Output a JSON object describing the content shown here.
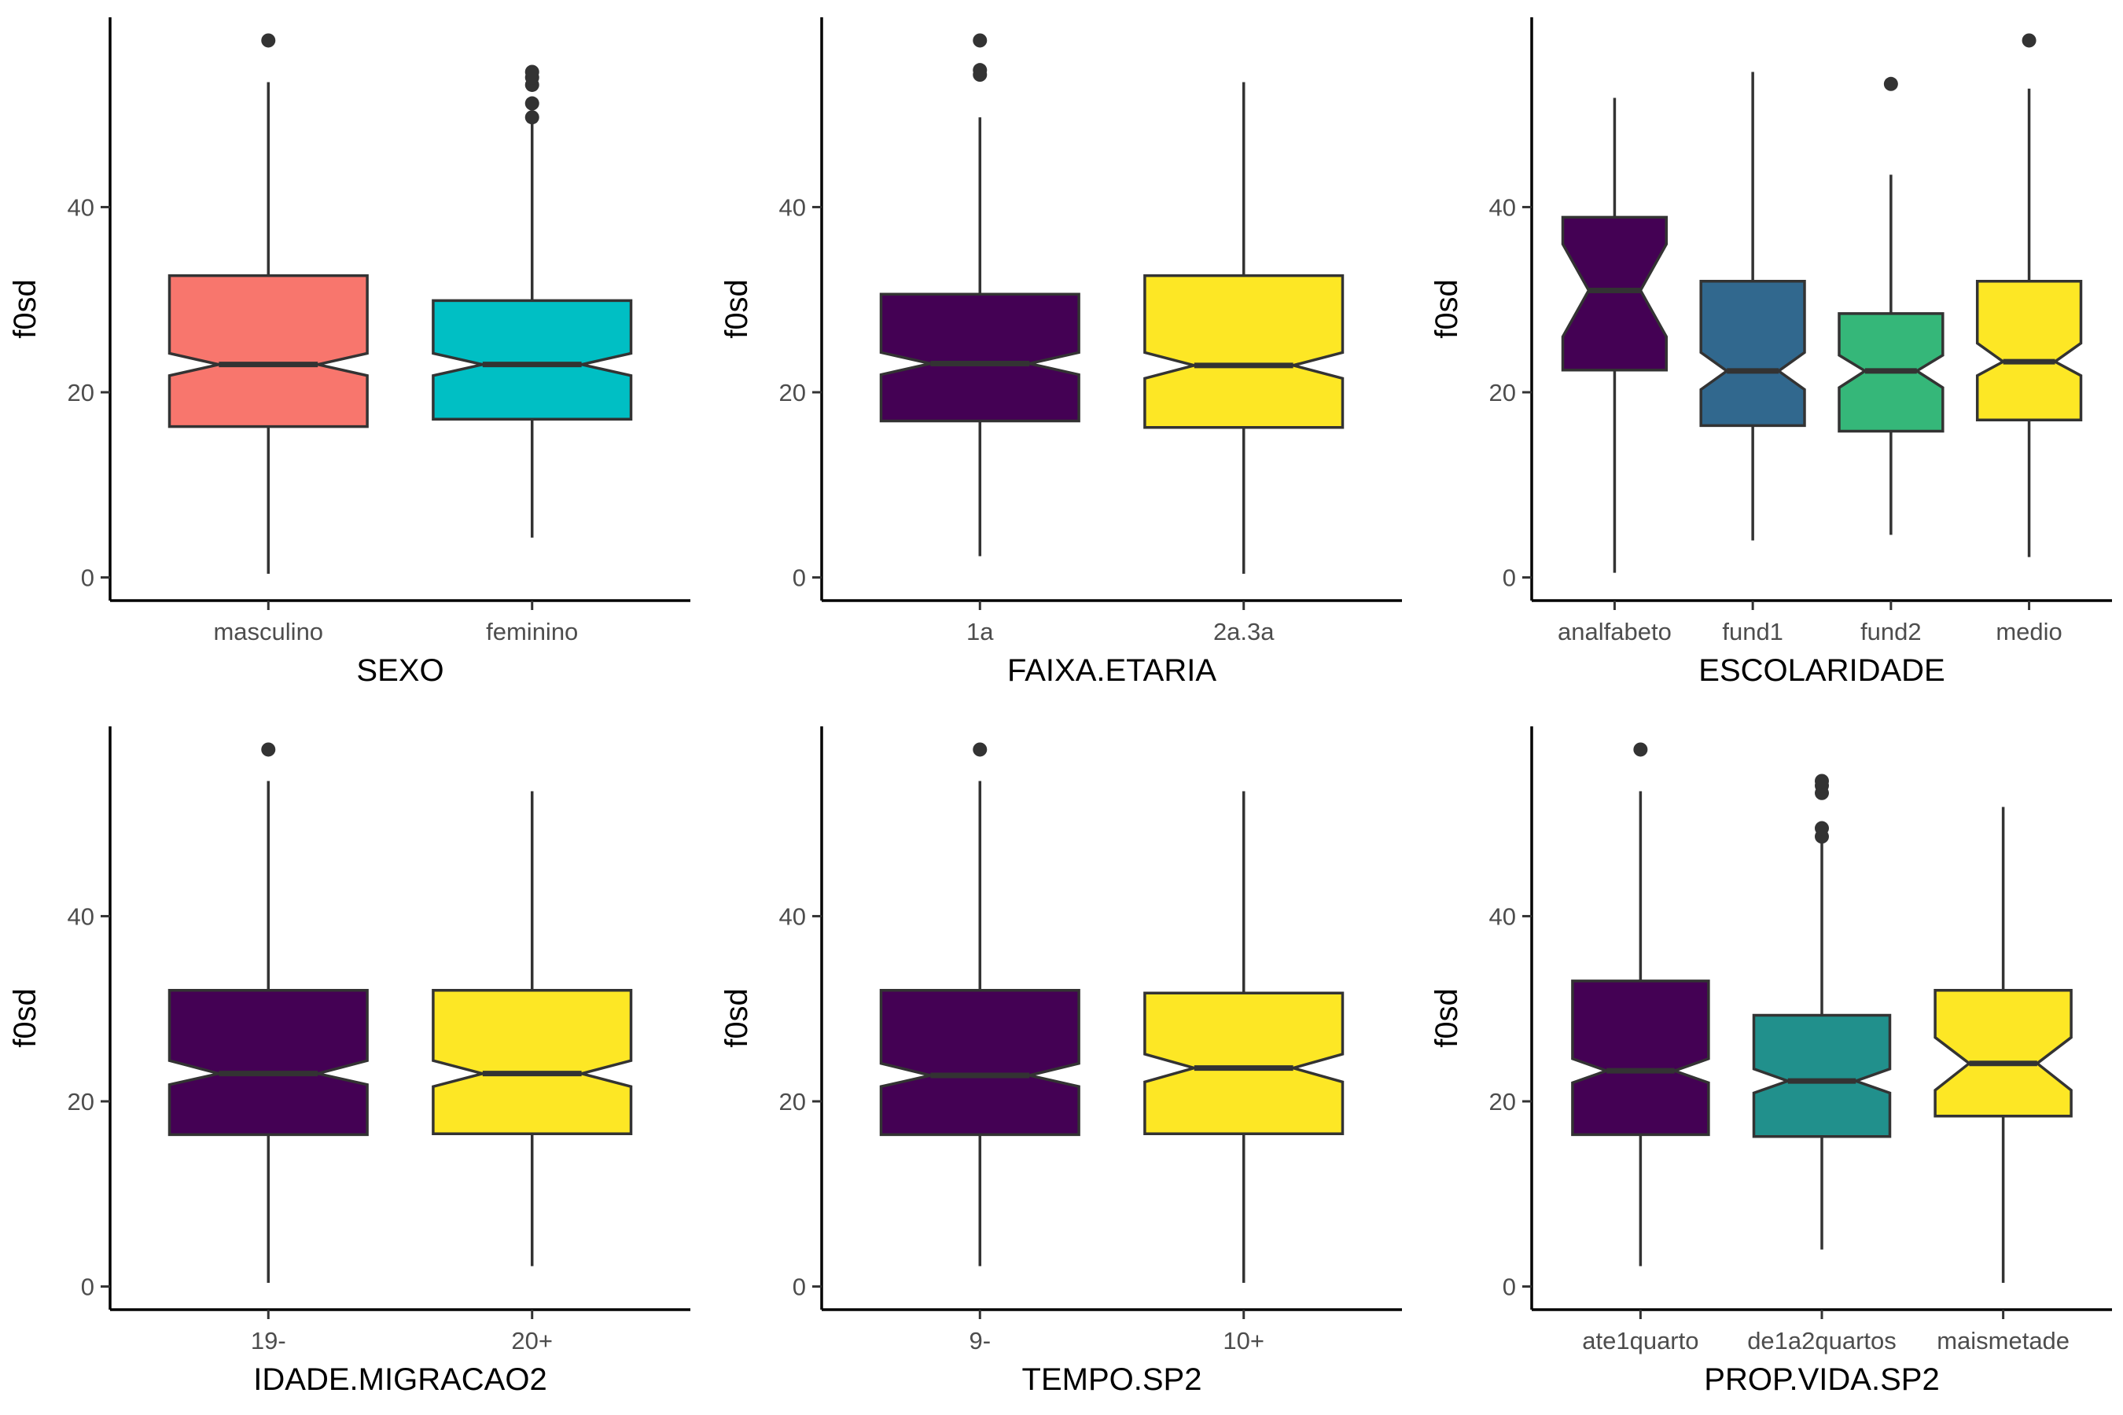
{
  "chart_data": [
    {
      "type": "boxplot",
      "notched": true,
      "xlabel": "SEXO",
      "ylabel": "f0sd",
      "yticks": [
        0,
        20,
        40
      ],
      "ylim": [
        -2.5,
        60.5
      ],
      "categories": [
        "masculino",
        "feminino"
      ],
      "colors": [
        "#F8766D",
        "#00BFC4"
      ],
      "boxes": [
        {
          "q1": 16.3,
          "median": 23.0,
          "q3": 32.6,
          "notch_low": 21.8,
          "notch_high": 24.2,
          "whisker_low": 0.4,
          "whisker_high": 53.5,
          "outliers": [
            58.0
          ]
        },
        {
          "q1": 17.1,
          "median": 23.0,
          "q3": 29.9,
          "notch_low": 21.8,
          "notch_high": 24.2,
          "whisker_low": 4.3,
          "whisker_high": 49.0,
          "outliers": [
            49.7,
            51.2,
            53.2,
            54.0,
            54.6
          ]
        }
      ]
    },
    {
      "type": "boxplot",
      "notched": true,
      "xlabel": "FAIXA.ETARIA",
      "ylabel": "f0sd",
      "yticks": [
        0,
        20,
        40
      ],
      "ylim": [
        -2.5,
        60.5
      ],
      "categories": [
        "1a",
        "2a.3a"
      ],
      "colors": [
        "#440154",
        "#FDE725"
      ],
      "boxes": [
        {
          "q1": 16.9,
          "median": 23.1,
          "q3": 30.6,
          "notch_low": 21.9,
          "notch_high": 24.3,
          "whisker_low": 2.3,
          "whisker_high": 49.7,
          "outliers": [
            54.3,
            54.8,
            58.0
          ]
        },
        {
          "q1": 16.2,
          "median": 22.9,
          "q3": 32.6,
          "notch_low": 21.5,
          "notch_high": 24.3,
          "whisker_low": 0.4,
          "whisker_high": 53.5,
          "outliers": []
        }
      ]
    },
    {
      "type": "boxplot",
      "notched": true,
      "xlabel": "ESCOLARIDADE",
      "ylabel": "f0sd",
      "yticks": [
        0,
        20,
        40
      ],
      "ylim": [
        -2.5,
        60.5
      ],
      "categories": [
        "analfabeto",
        "fund1",
        "fund2",
        "medio"
      ],
      "colors": [
        "#440154",
        "#31688E",
        "#35B779",
        "#FDE725"
      ],
      "boxes": [
        {
          "q1": 22.4,
          "median": 31.0,
          "q3": 38.9,
          "notch_low": 26.0,
          "notch_high": 36.0,
          "whisker_low": 0.5,
          "whisker_high": 51.8,
          "outliers": []
        },
        {
          "q1": 16.4,
          "median": 22.3,
          "q3": 32.0,
          "notch_low": 20.3,
          "notch_high": 24.3,
          "whisker_low": 4.0,
          "whisker_high": 54.6,
          "outliers": []
        },
        {
          "q1": 15.8,
          "median": 22.3,
          "q3": 28.5,
          "notch_low": 20.5,
          "notch_high": 24.0,
          "whisker_low": 4.6,
          "whisker_high": 43.5,
          "outliers": [
            53.3
          ]
        },
        {
          "q1": 17.0,
          "median": 23.3,
          "q3": 32.0,
          "notch_low": 21.8,
          "notch_high": 25.3,
          "whisker_low": 2.2,
          "whisker_high": 52.8,
          "outliers": [
            58.0
          ]
        }
      ]
    },
    {
      "type": "boxplot",
      "notched": true,
      "xlabel": "IDADE.MIGRACAO2",
      "ylabel": "f0sd",
      "yticks": [
        0,
        20,
        40
      ],
      "ylim": [
        -2.5,
        60.5
      ],
      "categories": [
        "19-",
        "20+"
      ],
      "colors": [
        "#440154",
        "#FDE725"
      ],
      "boxes": [
        {
          "q1": 16.4,
          "median": 23.0,
          "q3": 32.0,
          "notch_low": 21.8,
          "notch_high": 24.4,
          "whisker_low": 0.4,
          "whisker_high": 54.6,
          "outliers": [
            58.0
          ]
        },
        {
          "q1": 16.5,
          "median": 23.0,
          "q3": 32.0,
          "notch_low": 21.6,
          "notch_high": 24.4,
          "whisker_low": 2.2,
          "whisker_high": 53.5,
          "outliers": []
        }
      ]
    },
    {
      "type": "boxplot",
      "notched": true,
      "xlabel": "TEMPO.SP2",
      "ylabel": "f0sd",
      "yticks": [
        0,
        20,
        40
      ],
      "ylim": [
        -2.5,
        60.5
      ],
      "categories": [
        "9-",
        "10+"
      ],
      "colors": [
        "#440154",
        "#FDE725"
      ],
      "boxes": [
        {
          "q1": 16.4,
          "median": 22.8,
          "q3": 32.0,
          "notch_low": 21.6,
          "notch_high": 24.1,
          "whisker_low": 2.2,
          "whisker_high": 54.6,
          "outliers": [
            58.0
          ]
        },
        {
          "q1": 16.5,
          "median": 23.6,
          "q3": 31.7,
          "notch_low": 22.1,
          "notch_high": 25.1,
          "whisker_low": 0.4,
          "whisker_high": 53.5,
          "outliers": []
        }
      ]
    },
    {
      "type": "boxplot",
      "notched": true,
      "xlabel": "PROP.VIDA.SP2",
      "ylabel": "f0sd",
      "yticks": [
        0,
        20,
        40
      ],
      "ylim": [
        -2.5,
        60.5
      ],
      "categories": [
        "ate1quarto",
        "de1a2quartos",
        "maismetade"
      ],
      "colors": [
        "#440154",
        "#21908C",
        "#FDE725"
      ],
      "boxes": [
        {
          "q1": 16.4,
          "median": 23.3,
          "q3": 33.0,
          "notch_low": 22.0,
          "notch_high": 24.6,
          "whisker_low": 2.2,
          "whisker_high": 53.5,
          "outliers": [
            58.0
          ]
        },
        {
          "q1": 16.2,
          "median": 22.2,
          "q3": 29.3,
          "notch_low": 20.9,
          "notch_high": 23.5,
          "whisker_low": 4.0,
          "whisker_high": 48.0,
          "outliers": [
            48.6,
            49.5,
            53.3,
            54.1,
            54.6
          ]
        },
        {
          "q1": 18.4,
          "median": 24.1,
          "q3": 32.0,
          "notch_low": 21.2,
          "notch_high": 26.9,
          "whisker_low": 0.4,
          "whisker_high": 51.8,
          "outliers": []
        }
      ]
    }
  ]
}
